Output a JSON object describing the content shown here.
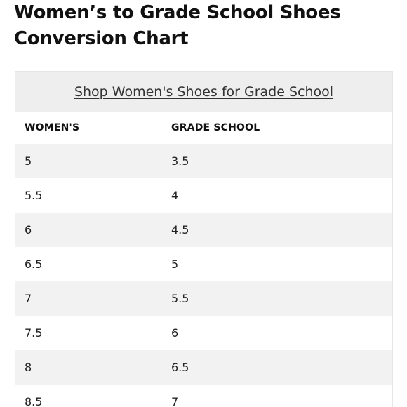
{
  "page": {
    "title": "Women’s to Grade School Shoes Conversion Chart"
  },
  "table": {
    "caption_link": "Shop Women's Shoes for Grade School",
    "headers": [
      "WOMEN'S",
      "GRADE SCHOOL"
    ],
    "rows": [
      [
        "5",
        "3.5"
      ],
      [
        "5.5",
        "4"
      ],
      [
        "6",
        "4.5"
      ],
      [
        "6.5",
        "5"
      ],
      [
        "7",
        "5.5"
      ],
      [
        "7.5",
        "6"
      ],
      [
        "8",
        "6.5"
      ],
      [
        "8.5",
        "7"
      ]
    ]
  }
}
